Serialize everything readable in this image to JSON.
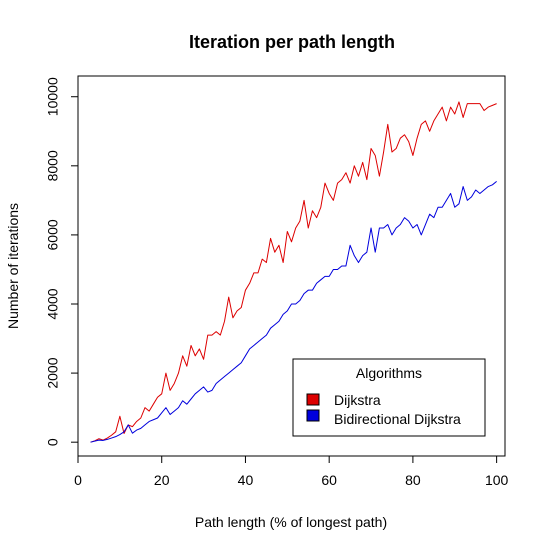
{
  "chart_data": {
    "type": "line",
    "title": "Iteration per path length",
    "xlabel": "Path length (% of longest path)",
    "ylabel": "Number of iterations",
    "xlim": [
      0,
      102
    ],
    "ylim": [
      -400,
      10600
    ],
    "xticks": [
      0,
      20,
      40,
      60,
      80,
      100
    ],
    "yticks": [
      0,
      2000,
      4000,
      6000,
      8000,
      10000
    ],
    "grid": false,
    "legend": {
      "title": "Algorithms",
      "position": "bottom-right"
    },
    "x": [
      3,
      4,
      5,
      6,
      7,
      8,
      9,
      10,
      11,
      12,
      13,
      14,
      15,
      16,
      17,
      18,
      19,
      20,
      21,
      22,
      23,
      24,
      25,
      26,
      27,
      28,
      29,
      30,
      31,
      32,
      33,
      34,
      35,
      36,
      37,
      38,
      39,
      40,
      41,
      42,
      43,
      44,
      45,
      46,
      47,
      48,
      49,
      50,
      51,
      52,
      53,
      54,
      55,
      56,
      57,
      58,
      59,
      60,
      61,
      62,
      63,
      64,
      65,
      66,
      67,
      68,
      69,
      70,
      71,
      72,
      73,
      74,
      75,
      76,
      77,
      78,
      79,
      80,
      81,
      82,
      83,
      84,
      85,
      86,
      87,
      88,
      89,
      90,
      91,
      92,
      93,
      94,
      95,
      96,
      97,
      98,
      99,
      100
    ],
    "series": [
      {
        "name": "Dijkstra",
        "color": "#dd0000",
        "values": [
          0,
          40,
          100,
          60,
          120,
          200,
          300,
          750,
          250,
          500,
          450,
          600,
          700,
          1000,
          900,
          1100,
          1300,
          1400,
          2000,
          1500,
          1700,
          2000,
          2500,
          2200,
          2800,
          2500,
          2700,
          2400,
          3100,
          3100,
          3200,
          3100,
          3500,
          4200,
          3600,
          3800,
          3900,
          4400,
          4600,
          4900,
          4900,
          5300,
          5200,
          5900,
          5500,
          5700,
          5200,
          6100,
          5800,
          6200,
          6400,
          7000,
          6200,
          6700,
          6500,
          6800,
          7500,
          7200,
          7000,
          7500,
          7600,
          7800,
          7500,
          8000,
          7700,
          8100,
          7600,
          8500,
          8300,
          7700,
          8400,
          9200,
          8400,
          8500,
          8800,
          8900,
          8700,
          8300,
          8800,
          9200,
          9300,
          9000,
          9300,
          9500,
          9700,
          9300,
          9700,
          9500,
          9850,
          9400,
          9800,
          9800,
          9800,
          9800,
          9600,
          9700,
          9750,
          9800
        ]
      },
      {
        "name": "Bidirectional Dijkstra",
        "color": "#0000dd",
        "values": [
          0,
          30,
          60,
          50,
          80,
          120,
          160,
          220,
          300,
          500,
          260,
          350,
          400,
          500,
          600,
          650,
          700,
          850,
          1000,
          800,
          900,
          1000,
          1200,
          1100,
          1250,
          1400,
          1500,
          1600,
          1450,
          1500,
          1700,
          1800,
          1900,
          2000,
          2100,
          2200,
          2300,
          2500,
          2700,
          2800,
          2900,
          3000,
          3100,
          3300,
          3400,
          3500,
          3700,
          3800,
          4000,
          4000,
          4100,
          4300,
          4400,
          4400,
          4600,
          4700,
          4800,
          4800,
          5000,
          5000,
          5100,
          5100,
          5700,
          5400,
          5200,
          5400,
          5500,
          6200,
          5500,
          6200,
          6200,
          6300,
          6000,
          6200,
          6300,
          6500,
          6400,
          6200,
          6300,
          6000,
          6300,
          6600,
          6500,
          6800,
          6800,
          7000,
          7200,
          6800,
          6900,
          7400,
          7000,
          7100,
          7300,
          7200,
          7300,
          7400,
          7450,
          7550
        ]
      }
    ]
  }
}
